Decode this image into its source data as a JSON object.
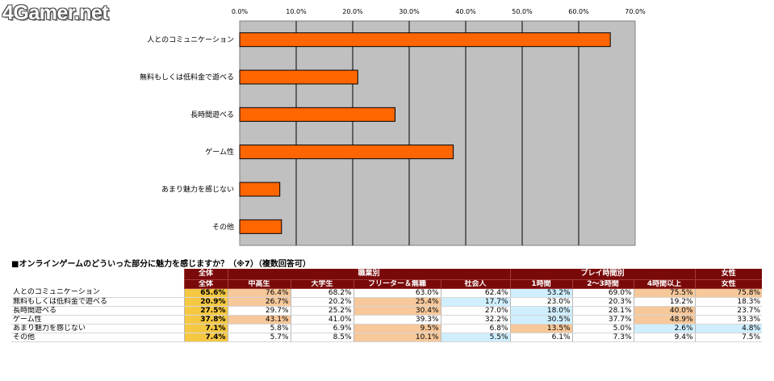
{
  "logo": "4Gamer.net",
  "chart_data": {
    "type": "bar",
    "orientation": "horizontal",
    "categories": [
      "人とのコミュニケーション",
      "無料もしくは低料金で遊べる",
      "長時間遊べる",
      "ゲーム性",
      "あまり魅力を感じない",
      "その他"
    ],
    "values": [
      65.6,
      20.9,
      27.5,
      37.8,
      7.1,
      7.4
    ],
    "xlim": [
      0,
      70
    ],
    "ticks": [
      "0.0%",
      "10.0%",
      "20.0%",
      "30.0%",
      "40.0%",
      "50.0%",
      "60.0%",
      "70.0%"
    ],
    "grid": true,
    "colors": {
      "bar": "#ff6600",
      "bar_edge": "#000000",
      "plot_bg": "#c0c0c0"
    }
  },
  "table": {
    "title": "■オンラインゲームのどういった部分に魅力を感じますか？（※7）（複数回答可）",
    "header_top": [
      "全体",
      "職業別",
      "プレイ時間別",
      "女性"
    ],
    "header_sub": [
      "全体",
      "中高生",
      "大学生",
      "フリーター＆無職",
      "社会人",
      "1時間",
      "2～3時間",
      "4時間以上",
      "女性"
    ],
    "rows": [
      {
        "label": "人とのコミュニケーション",
        "values": [
          "65.6%",
          "76.4%",
          "68.2%",
          "63.0%",
          "62.4%",
          "53.2%",
          "69.0%",
          "75.5%",
          "75.8%"
        ],
        "bg": [
          "",
          "orange",
          "",
          "",
          "",
          "blue",
          "",
          "orange",
          "orange"
        ]
      },
      {
        "label": "無料もしくは低料金で遊べる",
        "values": [
          "20.9%",
          "26.7%",
          "20.2%",
          "25.4%",
          "17.7%",
          "23.0%",
          "20.3%",
          "19.2%",
          "18.3%"
        ],
        "bg": [
          "",
          "orange",
          "",
          "orange",
          "blue",
          "",
          "",
          "",
          ""
        ]
      },
      {
        "label": "長時間遊べる",
        "values": [
          "27.5%",
          "29.7%",
          "25.2%",
          "30.4%",
          "27.0%",
          "18.0%",
          "28.1%",
          "40.0%",
          "23.7%"
        ],
        "bg": [
          "",
          "",
          "",
          "orange",
          "",
          "blue",
          "",
          "orange",
          ""
        ]
      },
      {
        "label": "ゲーム性",
        "values": [
          "37.8%",
          "43.1%",
          "41.0%",
          "39.3%",
          "32.2%",
          "30.5%",
          "37.7%",
          "48.9%",
          "33.3%"
        ],
        "bg": [
          "",
          "orange",
          "",
          "",
          "",
          "blue",
          "",
          "orange",
          ""
        ]
      },
      {
        "label": "あまり魅力を感じない",
        "values": [
          "7.1%",
          "5.8%",
          "6.9%",
          "9.5%",
          "6.8%",
          "13.5%",
          "5.0%",
          "2.6%",
          "4.8%"
        ],
        "bg": [
          "",
          "",
          "",
          "orange",
          "",
          "orange",
          "",
          "blue",
          "blue"
        ]
      },
      {
        "label": "その他",
        "values": [
          "7.4%",
          "5.7%",
          "8.5%",
          "10.1%",
          "5.5%",
          "6.1%",
          "7.3%",
          "9.4%",
          "7.5%"
        ],
        "bg": [
          "",
          "",
          "",
          "orange",
          "blue",
          "",
          "",
          "",
          ""
        ]
      }
    ]
  }
}
